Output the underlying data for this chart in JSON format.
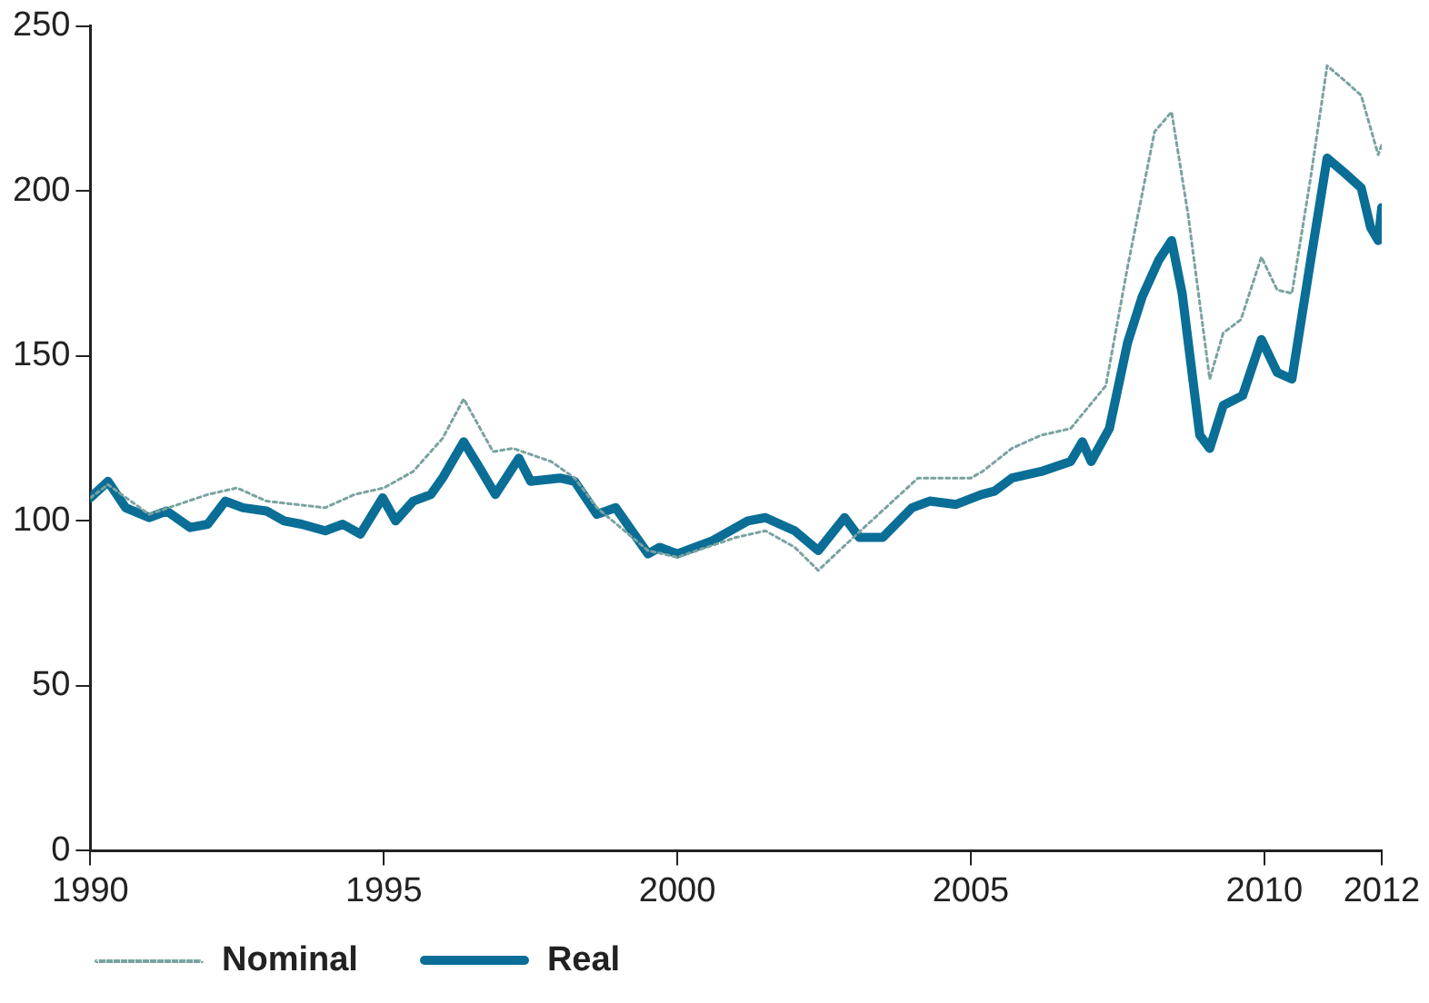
{
  "chart_data": {
    "type": "line",
    "xlim": [
      1990,
      2012
    ],
    "xticks": [
      1990,
      1995,
      2000,
      2005,
      2010,
      2012
    ],
    "ylim": [
      0,
      250
    ],
    "yticks": [
      0,
      50,
      100,
      150,
      200,
      250
    ],
    "grid": false,
    "legend": "bottom left",
    "marker": "none",
    "series": [
      {
        "name": "Nominal",
        "color": "#7aa3a0",
        "line_style": "dotted",
        "x": [
          1990,
          1990.3,
          1991,
          1992,
          1992.5,
          1993,
          1994,
          1994.5,
          1995,
          1995.5,
          1996,
          1996.36,
          1996.86,
          1997.2,
          1997.85,
          1998.25,
          1998.63,
          1999.5,
          2000,
          2001,
          2001.5,
          2002,
          2002.4,
          2003,
          2004.1,
          2005,
          2005.2,
          2005.7,
          2006.2,
          2006.7,
          2007.3,
          2007.67,
          2008.13,
          2008.42,
          2008.7,
          2009.07,
          2009.3,
          2009.6,
          2009.95,
          2010.22,
          2010.47,
          2010.78,
          2011.07,
          2011.4,
          2011.65,
          2011.94,
          2012
        ],
        "values": [
          107,
          111,
          102,
          108,
          110,
          106,
          104,
          108,
          110,
          115,
          125,
          137,
          121,
          122,
          118,
          113,
          104,
          91,
          89,
          95,
          97,
          92,
          85,
          95,
          113,
          113,
          115,
          122,
          126,
          128,
          141,
          177,
          218,
          224,
          193,
          143,
          157,
          161,
          180,
          170,
          169,
          203,
          238,
          233,
          229,
          211,
          214
        ]
      },
      {
        "name": "Real",
        "color": "#0a6e96",
        "line_style": "solid",
        "x": [
          1990,
          1990.3,
          1990.6,
          1991,
          1991.3,
          1991.7,
          1992,
          1992.3,
          1992.6,
          1993,
          1993.3,
          1993.6,
          1994,
          1994.3,
          1994.6,
          1994.98,
          1995.2,
          1995.5,
          1995.8,
          1996,
          1996.36,
          1996.6,
          1996.9,
          1997.3,
          1997.5,
          1998,
          1998.25,
          1998.63,
          1998.95,
          1999.5,
          1999.7,
          2000,
          2000.6,
          2001.2,
          2001.5,
          2002,
          2002.4,
          2002.85,
          2003.1,
          2003.5,
          2004,
          2004.3,
          2004.75,
          2005.18,
          2005.4,
          2005.7,
          2006.2,
          2006.7,
          2006.9,
          2007.05,
          2007.36,
          2007.67,
          2007.92,
          2008.2,
          2008.42,
          2008.6,
          2008.9,
          2009.07,
          2009.3,
          2009.63,
          2009.95,
          2010.22,
          2010.47,
          2010.78,
          2011.07,
          2011.4,
          2011.65,
          2011.81,
          2011.94,
          2012
        ],
        "values": [
          107,
          112,
          104,
          101,
          103,
          98,
          99,
          106,
          104,
          103,
          100,
          99,
          97,
          99,
          96,
          107,
          100,
          106,
          108,
          113,
          124,
          117,
          108,
          119,
          112,
          113,
          112,
          102,
          104,
          90,
          92,
          90,
          94,
          100,
          101,
          97,
          91,
          101,
          95,
          95,
          104,
          106,
          105,
          108,
          109,
          113,
          115,
          118,
          124,
          118,
          128,
          154,
          168,
          179,
          185,
          169,
          126,
          122,
          135,
          138,
          155,
          145,
          143,
          178,
          210,
          205,
          201,
          189,
          185,
          195
        ]
      }
    ]
  }
}
